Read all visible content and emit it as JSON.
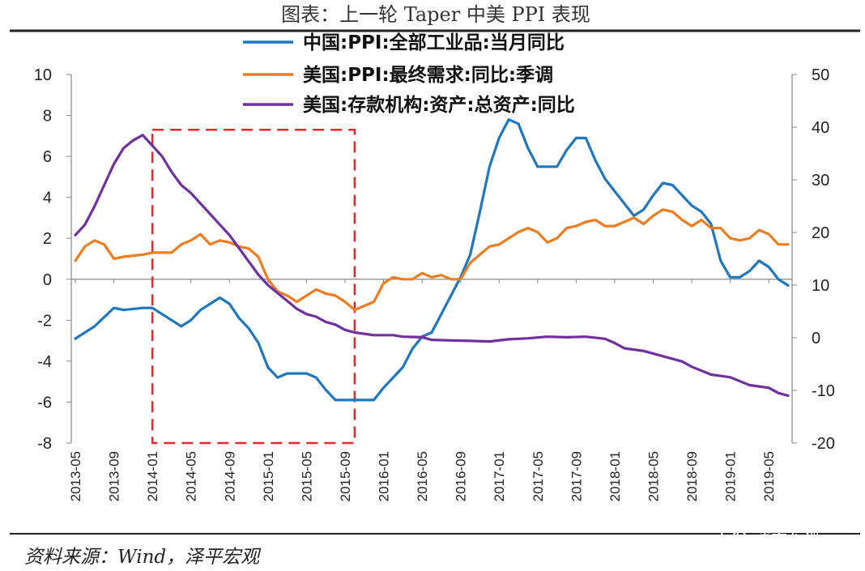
{
  "header": {
    "title": "图表：上一轮 Taper 中美 PPI 表现"
  },
  "footer": {
    "source": "资料来源：Wind，泽平宏观",
    "watermark": "泽平宏观"
  },
  "colors": {
    "china_ppi": "#1f77c0",
    "us_ppi": "#ee7d1f",
    "us_assets": "#7030a0",
    "highlight_box": "#e8262c"
  },
  "chart_data": {
    "type": "line",
    "title": "图表：上一轮 Taper 中美 PPI 表现",
    "legend_position": "top",
    "grid": false,
    "x_tick_labels": [
      "2013-05",
      "2013-09",
      "2014-01",
      "2014-05",
      "2014-09",
      "2015-01",
      "2015-05",
      "2015-09",
      "2016-01",
      "2016-05",
      "2016-09",
      "2017-01",
      "2017-05",
      "2017-09",
      "2018-01",
      "2018-05",
      "2018-09",
      "2019-01",
      "2019-05"
    ],
    "y_left": {
      "min": -8,
      "max": 10,
      "step": 2,
      "ticks": [
        "10",
        "8",
        "6",
        "4",
        "2",
        "0",
        "-2",
        "-4",
        "-6",
        "-8"
      ]
    },
    "y_right": {
      "min": -20,
      "max": 50,
      "step": 10,
      "ticks": [
        "50",
        "40",
        "30",
        "20",
        "10",
        "0",
        "-10",
        "-20"
      ]
    },
    "x_range": [
      "2013-05",
      "2019-07"
    ],
    "highlight_range": {
      "from": "2014-01",
      "to": "2015-10",
      "y_from": -8,
      "y_to": 7.3
    },
    "series": [
      {
        "name": "中国:PPI:全部工业品:当月同比",
        "axis": "left",
        "points": [
          [
            "2013-05",
            -2.9
          ],
          [
            "2013-07",
            -2.3
          ],
          [
            "2013-09",
            -1.4
          ],
          [
            "2013-10",
            -1.5
          ],
          [
            "2013-12",
            -1.4
          ],
          [
            "2014-01",
            -1.4
          ],
          [
            "2014-03",
            -2.0
          ],
          [
            "2014-04",
            -2.3
          ],
          [
            "2014-05",
            -2.0
          ],
          [
            "2014-06",
            -1.5
          ],
          [
            "2014-07",
            -1.2
          ],
          [
            "2014-08",
            -0.9
          ],
          [
            "2014-09",
            -1.2
          ],
          [
            "2014-10",
            -1.9
          ],
          [
            "2014-11",
            -2.4
          ],
          [
            "2014-12",
            -3.1
          ],
          [
            "2015-01",
            -4.3
          ],
          [
            "2015-02",
            -4.8
          ],
          [
            "2015-03",
            -4.6
          ],
          [
            "2015-05",
            -4.6
          ],
          [
            "2015-06",
            -4.8
          ],
          [
            "2015-07",
            -5.4
          ],
          [
            "2015-08",
            -5.9
          ],
          [
            "2015-09",
            -5.9
          ],
          [
            "2015-10",
            -5.9
          ],
          [
            "2015-12",
            -5.9
          ],
          [
            "2016-01",
            -5.3
          ],
          [
            "2016-03",
            -4.3
          ],
          [
            "2016-04",
            -3.4
          ],
          [
            "2016-05",
            -2.8
          ],
          [
            "2016-06",
            -2.6
          ],
          [
            "2016-07",
            -1.7
          ],
          [
            "2016-08",
            -0.8
          ],
          [
            "2016-09",
            0.1
          ],
          [
            "2016-10",
            1.2
          ],
          [
            "2016-11",
            3.3
          ],
          [
            "2016-12",
            5.5
          ],
          [
            "2017-01",
            6.9
          ],
          [
            "2017-02",
            7.8
          ],
          [
            "2017-03",
            7.6
          ],
          [
            "2017-04",
            6.4
          ],
          [
            "2017-05",
            5.5
          ],
          [
            "2017-06",
            5.5
          ],
          [
            "2017-07",
            5.5
          ],
          [
            "2017-08",
            6.3
          ],
          [
            "2017-09",
            6.9
          ],
          [
            "2017-10",
            6.9
          ],
          [
            "2017-11",
            5.8
          ],
          [
            "2017-12",
            4.9
          ],
          [
            "2018-02",
            3.7
          ],
          [
            "2018-03",
            3.1
          ],
          [
            "2018-04",
            3.4
          ],
          [
            "2018-05",
            4.1
          ],
          [
            "2018-06",
            4.7
          ],
          [
            "2018-07",
            4.6
          ],
          [
            "2018-08",
            4.1
          ],
          [
            "2018-09",
            3.6
          ],
          [
            "2018-10",
            3.3
          ],
          [
            "2018-11",
            2.7
          ],
          [
            "2018-12",
            0.9
          ],
          [
            "2019-01",
            0.1
          ],
          [
            "2019-02",
            0.1
          ],
          [
            "2019-03",
            0.4
          ],
          [
            "2019-04",
            0.9
          ],
          [
            "2019-05",
            0.6
          ],
          [
            "2019-06",
            0.0
          ],
          [
            "2019-07",
            -0.3
          ]
        ]
      },
      {
        "name": "美国:PPI:最终需求:同比:季调",
        "axis": "left",
        "points": [
          [
            "2013-05",
            0.9
          ],
          [
            "2013-06",
            1.6
          ],
          [
            "2013-07",
            1.9
          ],
          [
            "2013-08",
            1.7
          ],
          [
            "2013-09",
            1.0
          ],
          [
            "2013-10",
            1.1
          ],
          [
            "2013-12",
            1.2
          ],
          [
            "2014-01",
            1.3
          ],
          [
            "2014-02",
            1.3
          ],
          [
            "2014-03",
            1.3
          ],
          [
            "2014-04",
            1.7
          ],
          [
            "2014-05",
            1.9
          ],
          [
            "2014-06",
            2.2
          ],
          [
            "2014-07",
            1.7
          ],
          [
            "2014-08",
            1.9
          ],
          [
            "2014-09",
            1.8
          ],
          [
            "2014-10",
            1.6
          ],
          [
            "2014-11",
            1.5
          ],
          [
            "2014-12",
            1.1
          ],
          [
            "2015-01",
            0.0
          ],
          [
            "2015-02",
            -0.6
          ],
          [
            "2015-03",
            -0.8
          ],
          [
            "2015-04",
            -1.1
          ],
          [
            "2015-05",
            -0.8
          ],
          [
            "2015-06",
            -0.5
          ],
          [
            "2015-07",
            -0.7
          ],
          [
            "2015-08",
            -0.8
          ],
          [
            "2015-09",
            -1.1
          ],
          [
            "2015-10",
            -1.5
          ],
          [
            "2015-11",
            -1.3
          ],
          [
            "2015-12",
            -1.1
          ],
          [
            "2016-01",
            -0.2
          ],
          [
            "2016-02",
            0.1
          ],
          [
            "2016-03",
            0.0
          ],
          [
            "2016-04",
            0.0
          ],
          [
            "2016-05",
            0.3
          ],
          [
            "2016-06",
            0.1
          ],
          [
            "2016-07",
            0.2
          ],
          [
            "2016-08",
            0.0
          ],
          [
            "2016-09",
            0.0
          ],
          [
            "2016-10",
            0.8
          ],
          [
            "2016-11",
            1.2
          ],
          [
            "2016-12",
            1.6
          ],
          [
            "2017-01",
            1.7
          ],
          [
            "2017-02",
            2.0
          ],
          [
            "2017-03",
            2.3
          ],
          [
            "2017-04",
            2.5
          ],
          [
            "2017-05",
            2.3
          ],
          [
            "2017-06",
            1.8
          ],
          [
            "2017-07",
            2.0
          ],
          [
            "2017-08",
            2.5
          ],
          [
            "2017-09",
            2.6
          ],
          [
            "2017-10",
            2.8
          ],
          [
            "2017-11",
            2.9
          ],
          [
            "2017-12",
            2.6
          ],
          [
            "2018-01",
            2.6
          ],
          [
            "2018-02",
            2.8
          ],
          [
            "2018-03",
            3.0
          ],
          [
            "2018-04",
            2.7
          ],
          [
            "2018-05",
            3.1
          ],
          [
            "2018-06",
            3.4
          ],
          [
            "2018-07",
            3.3
          ],
          [
            "2018-08",
            2.9
          ],
          [
            "2018-09",
            2.6
          ],
          [
            "2018-10",
            2.9
          ],
          [
            "2018-11",
            2.5
          ],
          [
            "2018-12",
            2.5
          ],
          [
            "2019-01",
            2.0
          ],
          [
            "2019-02",
            1.9
          ],
          [
            "2019-03",
            2.0
          ],
          [
            "2019-04",
            2.4
          ],
          [
            "2019-05",
            2.2
          ],
          [
            "2019-06",
            1.7
          ],
          [
            "2019-07",
            1.7
          ]
        ]
      },
      {
        "name": "美国:存款机构:资产:总资产:同比",
        "axis": "right",
        "points": [
          [
            "2013-05",
            19.5
          ],
          [
            "2013-06",
            21.5
          ],
          [
            "2013-07",
            25.0
          ],
          [
            "2013-08",
            29.0
          ],
          [
            "2013-09",
            33.0
          ],
          [
            "2013-10",
            36.0
          ],
          [
            "2013-11",
            37.5
          ],
          [
            "2013-12",
            38.5
          ],
          [
            "2014-01",
            36.5
          ],
          [
            "2014-02",
            34.5
          ],
          [
            "2014-03",
            31.5
          ],
          [
            "2014-04",
            29.0
          ],
          [
            "2014-05",
            27.5
          ],
          [
            "2014-06",
            25.5
          ],
          [
            "2014-07",
            23.5
          ],
          [
            "2014-08",
            21.5
          ],
          [
            "2014-09",
            19.5
          ],
          [
            "2014-10",
            17.0
          ],
          [
            "2014-11",
            14.5
          ],
          [
            "2014-12",
            12.0
          ],
          [
            "2015-01",
            10.0
          ],
          [
            "2015-02",
            8.5
          ],
          [
            "2015-03",
            7.0
          ],
          [
            "2015-04",
            5.5
          ],
          [
            "2015-05",
            4.5
          ],
          [
            "2015-06",
            4.0
          ],
          [
            "2015-07",
            3.0
          ],
          [
            "2015-08",
            2.5
          ],
          [
            "2015-09",
            1.5
          ],
          [
            "2015-10",
            1.0
          ],
          [
            "2015-12",
            0.5
          ],
          [
            "2016-02",
            0.5
          ],
          [
            "2016-03",
            0.2
          ],
          [
            "2016-05",
            0.1
          ],
          [
            "2016-06",
            -0.4
          ],
          [
            "2016-08",
            -0.5
          ],
          [
            "2016-10",
            -0.6
          ],
          [
            "2016-12",
            -0.7
          ],
          [
            "2017-02",
            -0.3
          ],
          [
            "2017-04",
            -0.1
          ],
          [
            "2017-06",
            0.2
          ],
          [
            "2017-08",
            0.1
          ],
          [
            "2017-10",
            0.2
          ],
          [
            "2017-12",
            -0.2
          ],
          [
            "2018-01",
            -1.0
          ],
          [
            "2018-02",
            -2.0
          ],
          [
            "2018-04",
            -2.5
          ],
          [
            "2018-06",
            -3.5
          ],
          [
            "2018-08",
            -4.5
          ],
          [
            "2018-09",
            -5.5
          ],
          [
            "2018-11",
            -7.0
          ],
          [
            "2019-01",
            -7.5
          ],
          [
            "2019-03",
            -9.0
          ],
          [
            "2019-05",
            -9.5
          ],
          [
            "2019-06",
            -10.5
          ],
          [
            "2019-07",
            -11.0
          ]
        ]
      }
    ]
  }
}
